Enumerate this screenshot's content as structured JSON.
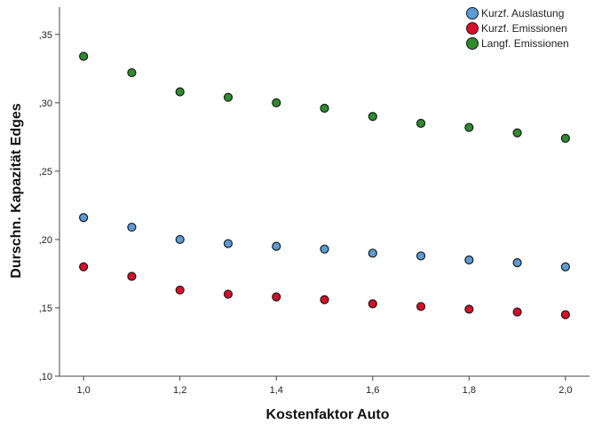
{
  "chart_data": {
    "type": "scatter",
    "xlabel": "Kostenfaktor Auto",
    "ylabel": "Durschn. Kapazität Edges",
    "xlim": [
      0.95,
      2.05
    ],
    "ylim": [
      0.1,
      0.37
    ],
    "x_ticks": [
      1.0,
      1.2,
      1.4,
      1.6,
      1.8,
      2.0
    ],
    "x_tick_labels": [
      "1,0",
      "1,2",
      "1,4",
      "1,6",
      "1,8",
      "2,0"
    ],
    "y_ticks": [
      0.1,
      0.15,
      0.2,
      0.25,
      0.3,
      0.35
    ],
    "y_tick_labels": [
      ",10",
      ",15",
      ",20",
      ",25",
      ",30",
      ",35"
    ],
    "grid": false,
    "legend_position": "top-right",
    "x": [
      1.0,
      1.1,
      1.2,
      1.3,
      1.4,
      1.5,
      1.6,
      1.7,
      1.8,
      1.9,
      2.0
    ],
    "series": [
      {
        "name": "Kurzf. Auslastung",
        "color": "#5b9bd5",
        "values": [
          0.216,
          0.209,
          0.2,
          0.197,
          0.195,
          0.193,
          0.19,
          0.188,
          0.185,
          0.183,
          0.18
        ]
      },
      {
        "name": "Kurzf. Emissionen",
        "color": "#d7102a",
        "values": [
          0.18,
          0.173,
          0.163,
          0.16,
          0.158,
          0.156,
          0.153,
          0.151,
          0.149,
          0.147,
          0.145
        ]
      },
      {
        "name": "Langf. Emissionen",
        "color": "#2e8b2e",
        "values": [
          0.334,
          0.322,
          0.308,
          0.304,
          0.3,
          0.296,
          0.29,
          0.285,
          0.282,
          0.278,
          0.274
        ]
      }
    ]
  }
}
